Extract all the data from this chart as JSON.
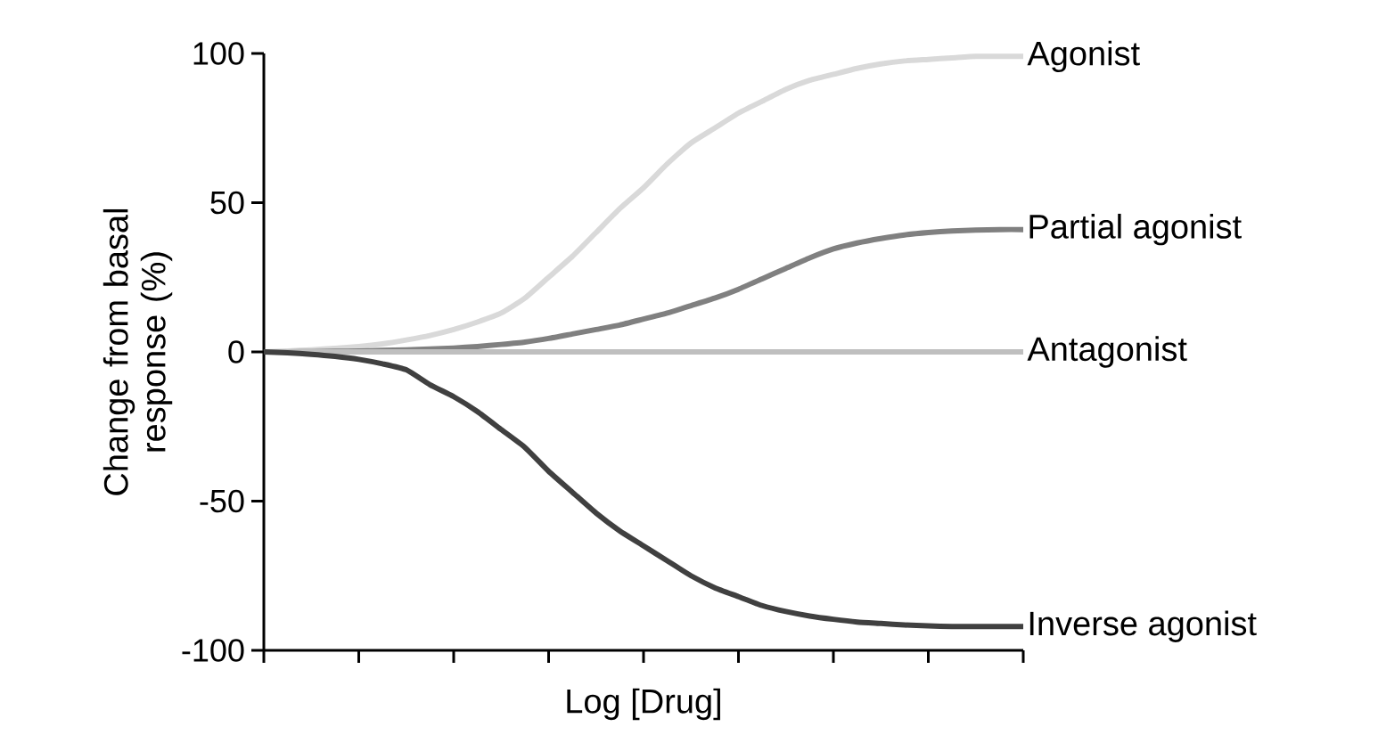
{
  "chart_data": {
    "type": "line",
    "xlabel": "Log [Drug]",
    "ylabel": "Change from basal response (%)",
    "categories": [
      null,
      null,
      null,
      null,
      null,
      null,
      null,
      null,
      null,
      null,
      null,
      null,
      null,
      null,
      null,
      null,
      null,
      null,
      null,
      null,
      null,
      null,
      null,
      null,
      null,
      null,
      null,
      null,
      null,
      null,
      null,
      null,
      null
    ],
    "ylim": [
      -100,
      100
    ],
    "yticks": [
      -100,
      -50,
      0,
      50,
      100
    ],
    "tick_labels": "y",
    "marker": "none",
    "line_style": "solid",
    "series": [
      {
        "name": "Agonist",
        "color": "#d9d9d9",
        "values": [
          0,
          0.3,
          0.7,
          1.2,
          1.8,
          2.7,
          4,
          5.5,
          7.5,
          10,
          13,
          18,
          25,
          32,
          40,
          48,
          55,
          63,
          70,
          75,
          80,
          84,
          88,
          91,
          93,
          95,
          96.5,
          97.5,
          98,
          98.5,
          99,
          99,
          99
        ]
      },
      {
        "name": "Partial agonist",
        "color": "#808080",
        "values": [
          0,
          0,
          0.1,
          0.2,
          0.3,
          0.5,
          0.7,
          1,
          1.3,
          1.8,
          2.5,
          3.3,
          4.5,
          6,
          7.5,
          9,
          11,
          13,
          15.5,
          18,
          21,
          24.5,
          28,
          31.5,
          34.5,
          36.5,
          38,
          39.2,
          40,
          40.5,
          40.8,
          41,
          41
        ]
      },
      {
        "name": "Antagonist",
        "color": "#bfbfbf",
        "values": [
          0,
          0,
          0,
          0,
          0,
          0,
          0,
          0,
          0,
          0,
          0,
          0,
          0,
          0,
          0,
          0,
          0,
          0,
          0,
          0,
          0,
          0,
          0,
          0,
          0,
          0,
          0,
          0,
          0,
          0,
          0,
          0,
          0
        ]
      },
      {
        "name": "Inverse agonist",
        "color": "#404040",
        "values": [
          0,
          -0.3,
          -0.8,
          -1.5,
          -2.5,
          -4,
          -6,
          -11,
          -15,
          -20,
          -26,
          -32,
          -40,
          -47,
          -54,
          -60,
          -65,
          -70,
          -75,
          -79,
          -82,
          -85,
          -87,
          -88.5,
          -89.6,
          -90.5,
          -91,
          -91.5,
          -91.8,
          -92,
          -92,
          -92,
          -92
        ]
      }
    ]
  }
}
